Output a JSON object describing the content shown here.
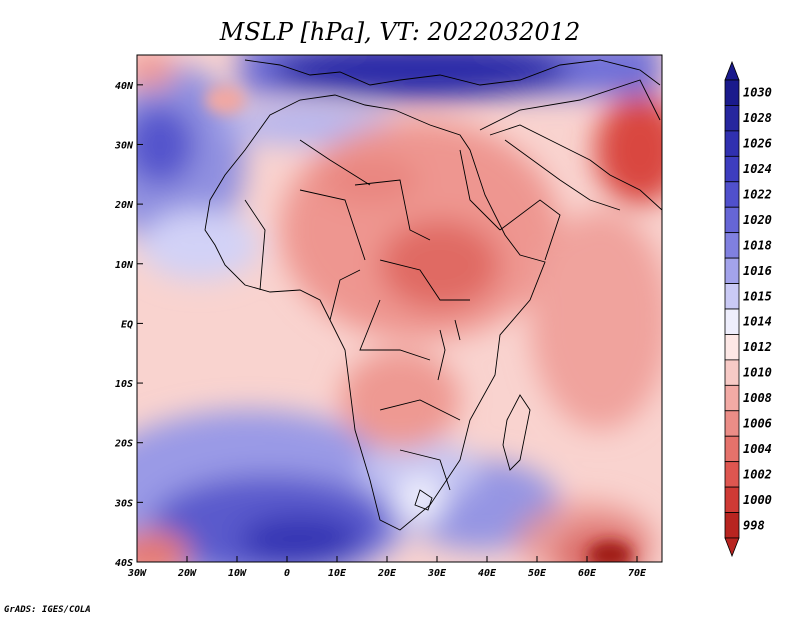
{
  "title": "MSLP [hPa], VT: 2022032012",
  "credit": "GrADS: IGES/COLA",
  "map": {
    "lon_range": [
      -30,
      75
    ],
    "lat_range": [
      -40,
      45
    ],
    "lon_ticks": [
      {
        "value": -30,
        "label": "30W"
      },
      {
        "value": -20,
        "label": "20W"
      },
      {
        "value": -10,
        "label": "10W"
      },
      {
        "value": 0,
        "label": "0"
      },
      {
        "value": 10,
        "label": "10E"
      },
      {
        "value": 20,
        "label": "20E"
      },
      {
        "value": 30,
        "label": "30E"
      },
      {
        "value": 40,
        "label": "40E"
      },
      {
        "value": 50,
        "label": "50E"
      },
      {
        "value": 60,
        "label": "60E"
      },
      {
        "value": 70,
        "label": "70E"
      }
    ],
    "lat_ticks": [
      {
        "value": 40,
        "label": "40N"
      },
      {
        "value": 30,
        "label": "30N"
      },
      {
        "value": 20,
        "label": "20N"
      },
      {
        "value": 10,
        "label": "10N"
      },
      {
        "value": 0,
        "label": "EQ"
      },
      {
        "value": -10,
        "label": "10S"
      },
      {
        "value": -20,
        "label": "20S"
      },
      {
        "value": -30,
        "label": "30S"
      },
      {
        "value": -40,
        "label": "40S"
      }
    ]
  },
  "colorbar": {
    "levels": [
      {
        "label": "1030",
        "color": "#1a1a8c"
      },
      {
        "label": "1028",
        "color": "#26269e"
      },
      {
        "label": "1026",
        "color": "#3030b0"
      },
      {
        "label": "1024",
        "color": "#3d3dbf"
      },
      {
        "label": "1022",
        "color": "#5050cc"
      },
      {
        "label": "1020",
        "color": "#6666d6"
      },
      {
        "label": "1018",
        "color": "#8080e0"
      },
      {
        "label": "1016",
        "color": "#a3a3eb"
      },
      {
        "label": "1015",
        "color": "#cacaf5"
      },
      {
        "label": "1014",
        "color": "#eeeefc"
      },
      {
        "label": "1012",
        "color": "#fde8e6"
      },
      {
        "label": "1010",
        "color": "#f7cac6"
      },
      {
        "label": "1008",
        "color": "#f2aaa5"
      },
      {
        "label": "1006",
        "color": "#eb8d87"
      },
      {
        "label": "1004",
        "color": "#e5726b"
      },
      {
        "label": "1002",
        "color": "#de5650"
      },
      {
        "label": "1000",
        "color": "#cf3a35"
      },
      {
        "label": "998",
        "color": "#b82420"
      }
    ]
  }
}
